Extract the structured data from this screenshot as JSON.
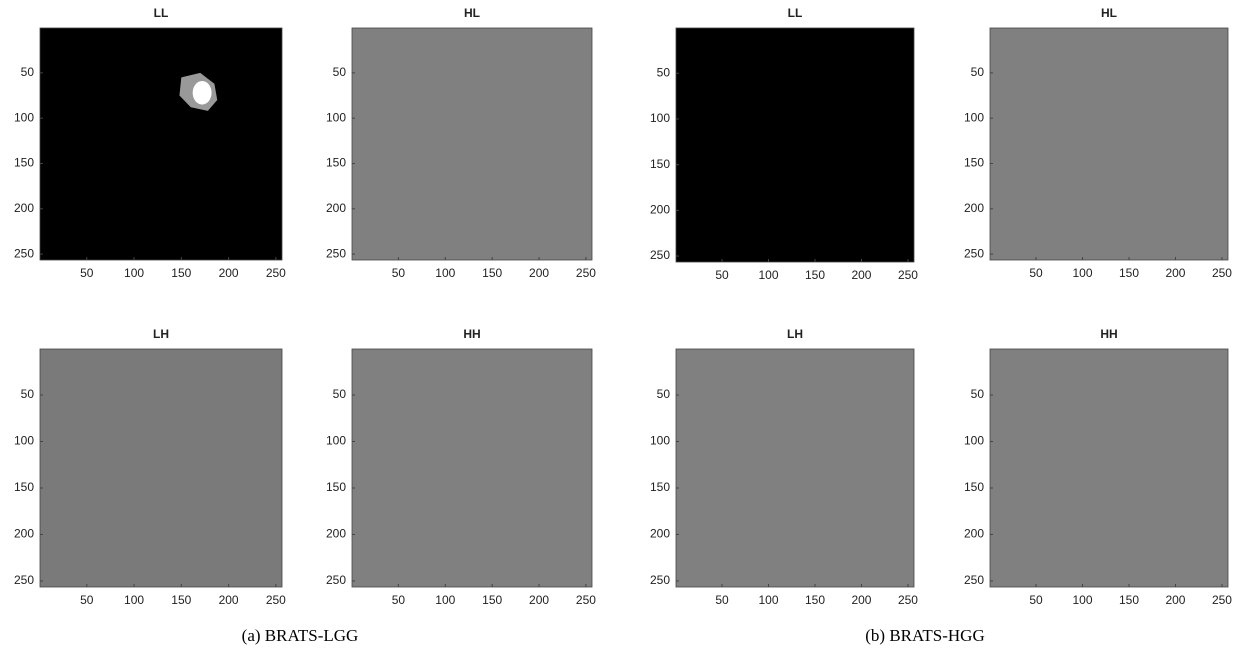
{
  "chart_data": [
    {
      "type": "image",
      "title": "LL",
      "xlim": [
        0.5,
        256.5
      ],
      "ylim": [
        256.5,
        0.5
      ],
      "xticks": [
        50,
        100,
        150,
        200,
        250
      ],
      "yticks": [
        50,
        100,
        150,
        200,
        250
      ]
    },
    {
      "type": "image",
      "title": "HL",
      "xlim": [
        0.5,
        256.5
      ],
      "ylim": [
        256.5,
        0.5
      ],
      "xticks": [
        50,
        100,
        150,
        200,
        250
      ],
      "yticks": [
        50,
        100,
        150,
        200,
        250
      ]
    },
    {
      "type": "image",
      "title": "LL",
      "xlim": [
        0.5,
        256.5
      ],
      "ylim": [
        256.5,
        0.5
      ],
      "xticks": [
        50,
        100,
        150,
        200,
        250
      ],
      "yticks": [
        50,
        100,
        150,
        200,
        250
      ]
    },
    {
      "type": "image",
      "title": "HL",
      "xlim": [
        0.5,
        256.5
      ],
      "ylim": [
        256.5,
        0.5
      ],
      "xticks": [
        50,
        100,
        150,
        200,
        250
      ],
      "yticks": [
        50,
        100,
        150,
        200,
        250
      ]
    },
    {
      "type": "image",
      "title": "LH",
      "xlim": [
        0.5,
        256.5
      ],
      "ylim": [
        256.5,
        0.5
      ],
      "xticks": [
        50,
        100,
        150,
        200,
        250
      ],
      "yticks": [
        50,
        100,
        150,
        200,
        250
      ]
    },
    {
      "type": "image",
      "title": "HH",
      "xlim": [
        0.5,
        256.5
      ],
      "ylim": [
        256.5,
        0.5
      ],
      "xticks": [
        50,
        100,
        150,
        200,
        250
      ],
      "yticks": [
        50,
        100,
        150,
        200,
        250
      ]
    },
    {
      "type": "image",
      "title": "LH",
      "xlim": [
        0.5,
        256.5
      ],
      "ylim": [
        256.5,
        0.5
      ],
      "xticks": [
        50,
        100,
        150,
        200,
        250
      ],
      "yticks": [
        50,
        100,
        150,
        200,
        250
      ]
    },
    {
      "type": "image",
      "title": "HH",
      "xlim": [
        0.5,
        256.5
      ],
      "ylim": [
        256.5,
        0.5
      ],
      "xticks": [
        50,
        100,
        150,
        200,
        250
      ],
      "yticks": [
        50,
        100,
        150,
        200,
        250
      ]
    }
  ],
  "captions": [
    "(a) BRATS-LGG",
    "(b) BRATS-HGG"
  ]
}
